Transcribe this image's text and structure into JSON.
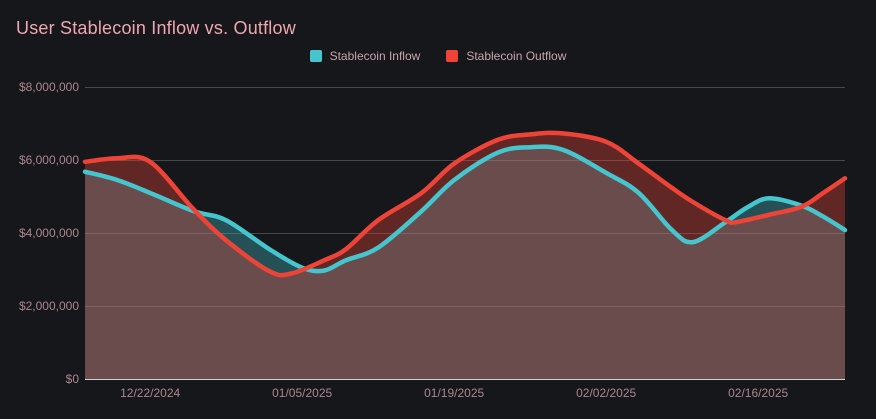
{
  "colors": {
    "bg": "#16171b",
    "title": "#f0a6ae",
    "tick": "#ab868c",
    "grid": "#46464b",
    "zero": "#d2d2d6",
    "inflow": "#45c5cd",
    "outflow": "#ee4438"
  },
  "header": {
    "title": "User Stablecoin Inflow vs. Outflow"
  },
  "legend": {
    "items": [
      {
        "label": "Stablecoin Inflow",
        "color": "#45c5cd"
      },
      {
        "label": "Stablecoin Outflow",
        "color": "#ee4438"
      }
    ]
  },
  "chart_data": {
    "type": "area",
    "title": "User Stablecoin Inflow vs. Outflow",
    "xlabel": "",
    "ylabel": "",
    "ylim": [
      0,
      8000000
    ],
    "x_domain_days": [
      0,
      70
    ],
    "grid": true,
    "legend_position": "top-center",
    "y_ticks": [
      {
        "label": "$0",
        "value": 0
      },
      {
        "label": "$2,000,000",
        "value": 2000000
      },
      {
        "label": "$4,000,000",
        "value": 4000000
      },
      {
        "label": "$6,000,000",
        "value": 6000000
      },
      {
        "label": "$8,000,000",
        "value": 8000000
      }
    ],
    "x_ticks": [
      {
        "label": "12/22/2024",
        "day": 6
      },
      {
        "label": "01/05/2025",
        "day": 20
      },
      {
        "label": "01/19/2025",
        "day": 34
      },
      {
        "label": "02/02/2025",
        "day": 48
      },
      {
        "label": "02/16/2025",
        "day": 62
      }
    ],
    "series": [
      {
        "name": "Stablecoin Inflow",
        "color": "#45c5cd",
        "fill_opacity": 0.33,
        "line_width": 4.5,
        "points": [
          {
            "day": 0,
            "value": 5680000
          },
          {
            "day": 3,
            "value": 5450000
          },
          {
            "day": 6,
            "value": 5100000
          },
          {
            "day": 10,
            "value": 4600000
          },
          {
            "day": 13,
            "value": 4350000
          },
          {
            "day": 17,
            "value": 3550000
          },
          {
            "day": 20,
            "value": 3050000
          },
          {
            "day": 22,
            "value": 2970000
          },
          {
            "day": 24,
            "value": 3250000
          },
          {
            "day": 27,
            "value": 3600000
          },
          {
            "day": 31,
            "value": 4600000
          },
          {
            "day": 34,
            "value": 5450000
          },
          {
            "day": 38,
            "value": 6200000
          },
          {
            "day": 41,
            "value": 6350000
          },
          {
            "day": 44,
            "value": 6280000
          },
          {
            "day": 48,
            "value": 5650000
          },
          {
            "day": 51,
            "value": 5100000
          },
          {
            "day": 54,
            "value": 4100000
          },
          {
            "day": 56,
            "value": 3750000
          },
          {
            "day": 59,
            "value": 4300000
          },
          {
            "day": 61,
            "value": 4700000
          },
          {
            "day": 63,
            "value": 4950000
          },
          {
            "day": 66,
            "value": 4750000
          },
          {
            "day": 68,
            "value": 4450000
          },
          {
            "day": 70,
            "value": 4080000
          }
        ]
      },
      {
        "name": "Stablecoin Outflow",
        "color": "#ee4438",
        "fill_opacity": 0.35,
        "line_width": 4.5,
        "points": [
          {
            "day": 0,
            "value": 5950000
          },
          {
            "day": 3,
            "value": 6050000
          },
          {
            "day": 6,
            "value": 5950000
          },
          {
            "day": 10,
            "value": 4650000
          },
          {
            "day": 13,
            "value": 3800000
          },
          {
            "day": 17,
            "value": 2950000
          },
          {
            "day": 19,
            "value": 2890000
          },
          {
            "day": 22,
            "value": 3250000
          },
          {
            "day": 24,
            "value": 3550000
          },
          {
            "day": 27,
            "value": 4350000
          },
          {
            "day": 31,
            "value": 5100000
          },
          {
            "day": 34,
            "value": 5900000
          },
          {
            "day": 38,
            "value": 6550000
          },
          {
            "day": 41,
            "value": 6700000
          },
          {
            "day": 44,
            "value": 6730000
          },
          {
            "day": 48,
            "value": 6500000
          },
          {
            "day": 51,
            "value": 5900000
          },
          {
            "day": 54,
            "value": 5250000
          },
          {
            "day": 56,
            "value": 4850000
          },
          {
            "day": 59,
            "value": 4350000
          },
          {
            "day": 60,
            "value": 4300000
          },
          {
            "day": 63,
            "value": 4500000
          },
          {
            "day": 66,
            "value": 4720000
          },
          {
            "day": 68,
            "value": 5100000
          },
          {
            "day": 70,
            "value": 5500000
          }
        ]
      }
    ]
  }
}
